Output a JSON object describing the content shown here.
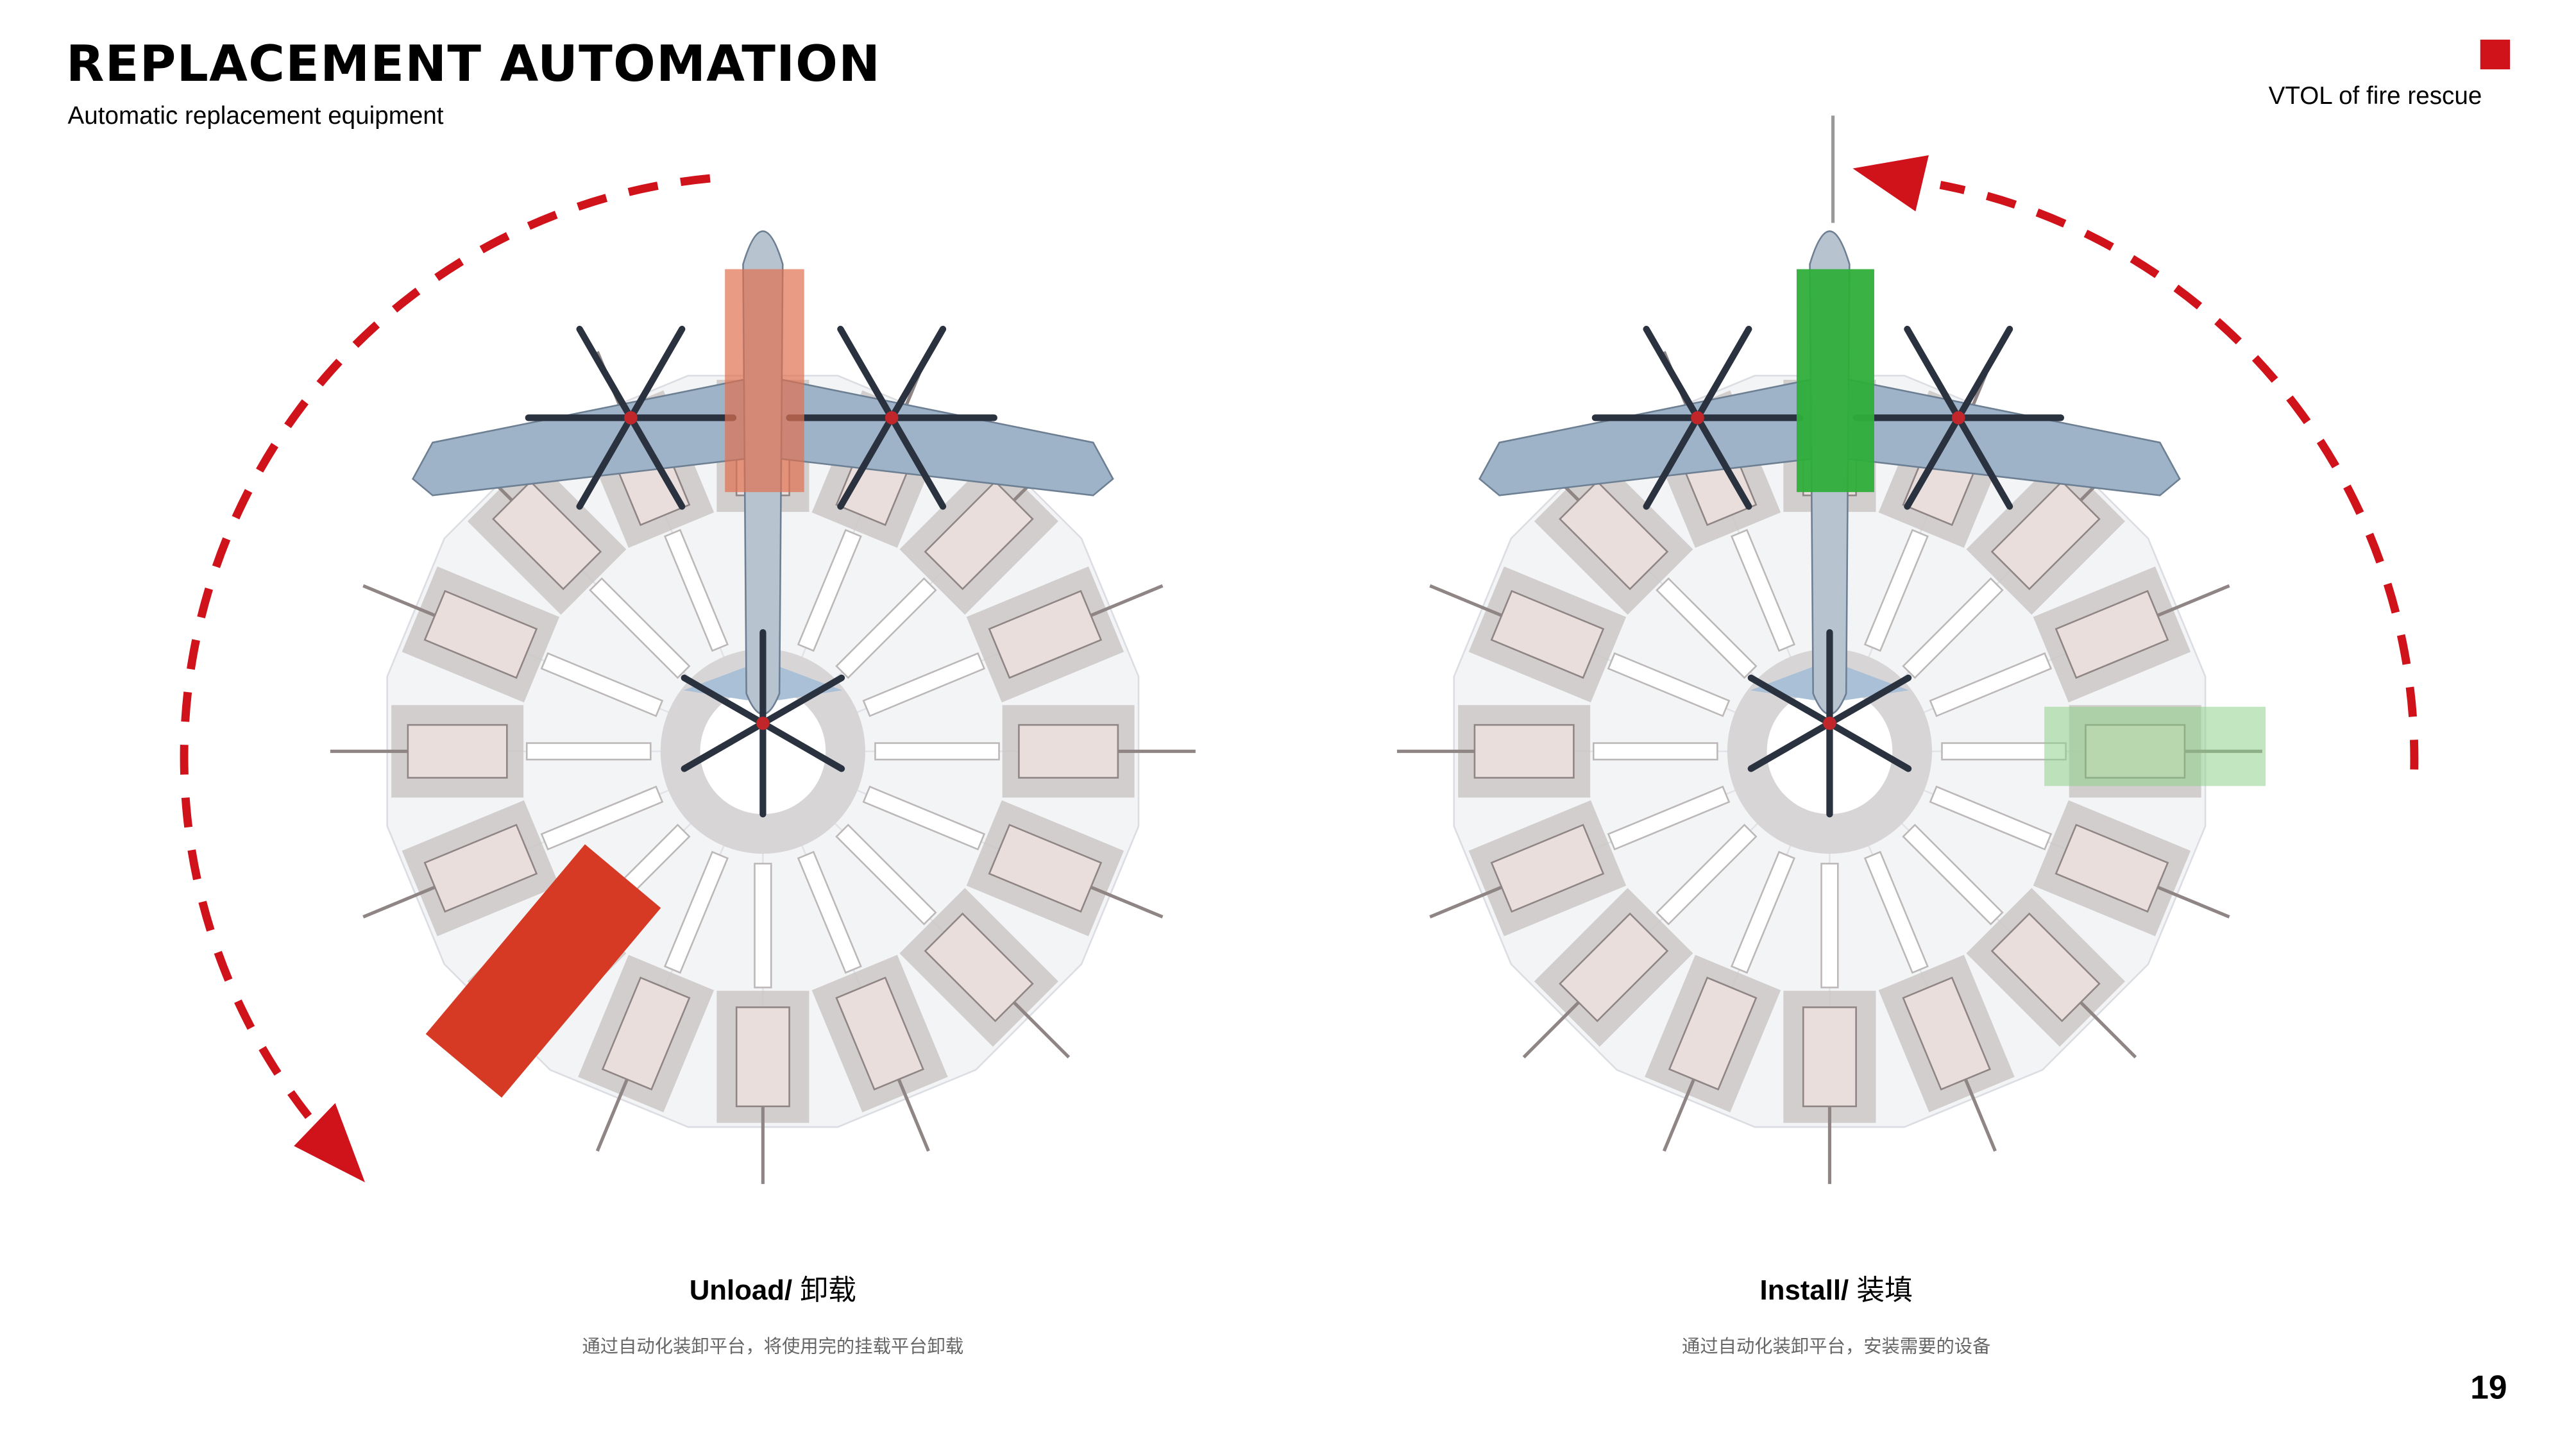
{
  "header": {
    "title": "REPLACEMENT AUTOMATION",
    "subtitle": "Automatic replacement equipment",
    "tag": "VTOL of fire rescue"
  },
  "panels": [
    {
      "title": "Unload/",
      "title_cn": "卸载",
      "description": "通过自动化装卸平台，将使用完的挂载平台卸载",
      "highlight_color": "#e07050",
      "target_color": "#d63a25",
      "arrow_direction": "counterclockwise-down"
    },
    {
      "title": "Install/",
      "title_cn": "装填",
      "description": "通过自动化装卸平台，安装需要的设备",
      "highlight_color": "#2fae3a",
      "target_color": "#8fd18a",
      "arrow_direction": "counterclockwise-up"
    }
  ],
  "colors": {
    "accent": "#d0121b",
    "platform": "#f3f4f6",
    "bay": "#c9c4c4",
    "aircraft": "#9fb3c8"
  },
  "page_number": "19"
}
